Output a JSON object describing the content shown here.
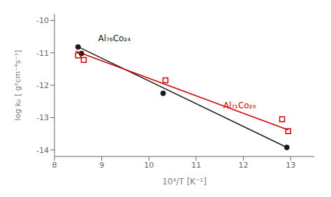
{
  "chart_data": {
    "type": "scatter",
    "xlabel": "10⁴/T [K⁻¹]",
    "ylabel": "log kₚ [ g²cm⁻⁴s⁻¹]",
    "xlim": [
      8.0,
      13.5
    ],
    "ylim": [
      -14.2,
      -9.8
    ],
    "xticks": [
      8,
      9,
      10,
      11,
      12,
      13
    ],
    "yticks": [
      -14,
      -13,
      -12,
      -11,
      -10
    ],
    "series": [
      {
        "type": "line",
        "color": "#1a1a1a",
        "marker": "none",
        "line_style": "solid",
        "x": [
          8.45,
          12.92
        ],
        "values": [
          -10.78,
          -13.92
        ]
      },
      {
        "type": "line",
        "color": "#cc0000",
        "marker": "none",
        "line_style": "solid",
        "x": [
          8.45,
          12.95
        ],
        "values": [
          -10.95,
          -13.38
        ]
      },
      {
        "type": "scatter",
        "color": "#1a1a1a",
        "marker": "circle",
        "x": [
          8.5,
          8.57,
          10.3,
          12.92
        ],
        "values": [
          -10.82,
          -11.02,
          -12.25,
          -13.92
        ]
      },
      {
        "type": "scatter",
        "color": "#cc0000",
        "marker": "square",
        "x": [
          8.5,
          8.62,
          10.35,
          12.82,
          12.95
        ],
        "values": [
          -11.08,
          -11.22,
          -11.85,
          -13.05,
          -13.42
        ]
      }
    ],
    "annotations": [
      {
        "text": "Al₇₆Co₂₄",
        "x": 8.85,
        "y": -10.55,
        "color": "#1a1a1a"
      },
      {
        "text": "Al₇₁Co₂₉",
        "x": 11.5,
        "y": -12.62,
        "color": "#cc0000"
      }
    ]
  }
}
